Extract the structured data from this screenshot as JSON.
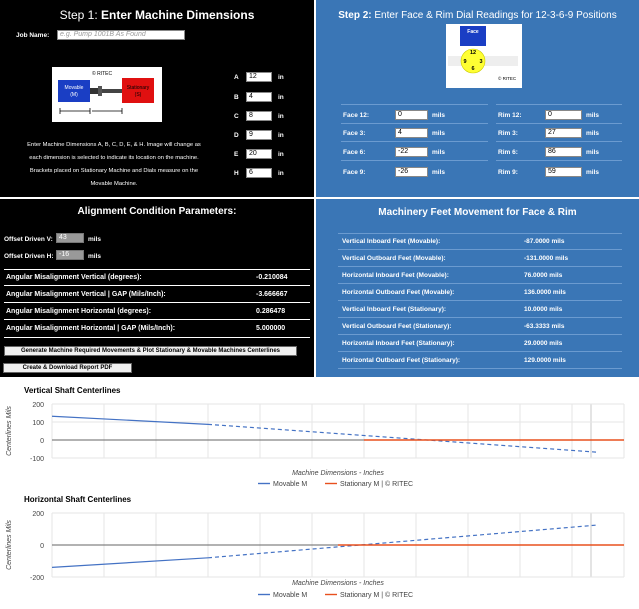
{
  "step1": {
    "title_prefix": "Step 1: ",
    "title_bold": "Enter Machine Dimensions",
    "job_label": "Job Name:",
    "job_placeholder": "e.g. Pump 1001B As Found",
    "diagram": {
      "brand": "© RITEC",
      "movable_label": "Movable\n(M)",
      "stationary_label": "Stationary\n(S)"
    },
    "dims": [
      {
        "letter": "A",
        "value": "12",
        "unit": "in"
      },
      {
        "letter": "B",
        "value": "4",
        "unit": "in"
      },
      {
        "letter": "C",
        "value": "8",
        "unit": "in"
      },
      {
        "letter": "D",
        "value": "9",
        "unit": "in"
      },
      {
        "letter": "E",
        "value": "20",
        "unit": "in"
      },
      {
        "letter": "H",
        "value": "6",
        "unit": "in"
      }
    ],
    "instructions": [
      "Enter Machine Dimensions A, B, C, D, E, & H. Image will change as",
      "each dimension is selected to indicate its location on the machine.",
      "Brackets placed on Stationary Machine and Dials measure on the",
      "Movable Machine."
    ]
  },
  "step2": {
    "title_bold": "Step 2:",
    "title_rest": " Enter Face & Rim Dial Readings for 12-3-6-9 Positions",
    "dial": {
      "face": "Face",
      "n12": "12",
      "n9": "9",
      "n3": "3",
      "n6": "6",
      "brand": "© RITEC"
    },
    "face": [
      {
        "label": "Face 12:",
        "value": "0",
        "unit": "mils"
      },
      {
        "label": "Face 3:",
        "value": "4",
        "unit": "mils"
      },
      {
        "label": "Face 6:",
        "value": "-22",
        "unit": "mils"
      },
      {
        "label": "Face 9:",
        "value": "-26",
        "unit": "mils"
      }
    ],
    "rim": [
      {
        "label": "Rim 12:",
        "value": "0",
        "unit": "mils"
      },
      {
        "label": "Rim 3:",
        "value": "27",
        "unit": "mils"
      },
      {
        "label": "Rim 6:",
        "value": "86",
        "unit": "mils"
      },
      {
        "label": "Rim 9:",
        "value": "59",
        "unit": "mils"
      }
    ]
  },
  "alignment": {
    "title": "Alignment Condition Parameters:",
    "offset_v_label": "Offset Driven V:",
    "offset_v_value": "43",
    "offset_h_label": "Offset Driven H:",
    "offset_h_value": "-16",
    "unit": "mils",
    "rows": [
      {
        "label": "Angular Misalignment Vertical (degrees):",
        "value": "-0.210084"
      },
      {
        "label": "Angular Misalignment Vertical | GAP (Mils/Inch):",
        "value": "-3.666667"
      },
      {
        "label": "Angular Misalignment Horizontal (degrees):",
        "value": "0.286478"
      },
      {
        "label": "Angular Misalignment Horizontal | GAP (Mils/Inch):",
        "value": "5.000000"
      }
    ],
    "generate_button": "Generate Machine Required Movements & Plot Stationary & Movable Machines Centerlines",
    "report_button": "Create & Download Report PDF"
  },
  "feet": {
    "title": "Machinery Feet Movement for Face & Rim",
    "rows": [
      {
        "label": "Vertical Inboard Feet (Movable):",
        "value": "-87.0000 mils"
      },
      {
        "label": "Vertical Outboard Feet (Movable):",
        "value": "-131.0000 mils"
      },
      {
        "label": "Horizontal Inboard Feet (Movable):",
        "value": "76.0000 mils"
      },
      {
        "label": "Horizontal Outboard Feet (Movable):",
        "value": "136.0000 mils"
      },
      {
        "label": "Vertical Inboard Feet (Stationary):",
        "value": "10.0000 mils"
      },
      {
        "label": "Vertical Outboard Feet (Stationary):",
        "value": "-63.3333 mils"
      },
      {
        "label": "Horizontal Inboard Feet (Stationary):",
        "value": "29.0000 mils"
      },
      {
        "label": "Horizontal Outboard Feet (Stationary):",
        "value": "129.0000 mils"
      }
    ]
  },
  "colors": {
    "movable": "#4472c4",
    "stationary": "#e8501e",
    "panel_blue": "#3a76b6",
    "movable_box": "#1a3ec4",
    "stationary_box": "#e01010"
  },
  "chart_data": [
    {
      "type": "line",
      "title": "Vertical Shaft Centerlines",
      "xlabel": "Machine Dimensions - Inches",
      "ylabel": "Centerlines Mils",
      "ylim": [
        -100,
        200
      ],
      "yticks": [
        "200",
        "100",
        "0",
        "-100"
      ],
      "legend_position": "bottom",
      "series": [
        {
          "name": "Movable M",
          "x": [
            0,
            12,
            42
          ],
          "y": [
            132,
            87,
            -68
          ]
        },
        {
          "name": "Stationary M | © RITEC",
          "x": [
            24,
            44
          ],
          "y": [
            0,
            0
          ]
        }
      ]
    },
    {
      "type": "line",
      "title": "Horizontal Shaft Centerlines",
      "xlabel": "Machine Dimensions - Inches",
      "ylabel": "Centerlines Mils",
      "ylim": [
        -200,
        200
      ],
      "yticks": [
        "200",
        "0",
        "-200"
      ],
      "legend_position": "bottom",
      "series": [
        {
          "name": "Movable M",
          "x": [
            0,
            12,
            42
          ],
          "y": [
            -140,
            -80,
            125
          ]
        },
        {
          "name": "Stationary M | © RITEC",
          "x": [
            22,
            44
          ],
          "y": [
            0,
            0
          ]
        }
      ]
    }
  ]
}
